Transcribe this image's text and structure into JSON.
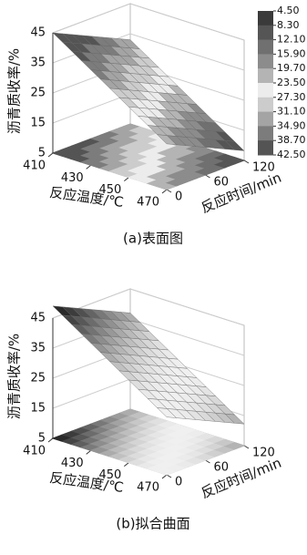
{
  "chart_data": [
    {
      "type": "surface",
      "caption": "(a)表面图",
      "zlabel": "沥青质收率/%",
      "xlabel": "反应温度/℃",
      "ylabel": "反应时间/min",
      "xlim": [
        410,
        470
      ],
      "xticks": [
        410,
        430,
        450,
        470
      ],
      "ylim": [
        0,
        120
      ],
      "yticks": [
        0,
        60,
        120
      ],
      "zlim": [
        5,
        45
      ],
      "zticks": [
        5,
        15,
        25,
        35,
        45
      ],
      "colorbar": {
        "ticks": [
          {
            "value": 4.5,
            "label": "4.50"
          },
          {
            "value": 8.3,
            "label": "8.30"
          },
          {
            "value": 12.1,
            "label": "12.10"
          },
          {
            "value": 15.9,
            "label": "15.90"
          },
          {
            "value": 19.7,
            "label": "19.70"
          },
          {
            "value": 23.5,
            "label": "23.50"
          },
          {
            "value": 27.3,
            "label": "27.30"
          },
          {
            "value": 31.1,
            "label": "31.10"
          },
          {
            "value": 34.9,
            "label": "34.90"
          },
          {
            "value": 38.7,
            "label": "38.70"
          },
          {
            "value": 42.5,
            "label": "42.50"
          }
        ],
        "colors": [
          "#3a3a3a",
          "#555555",
          "#707070",
          "#8c8c8c",
          "#b4b4b4",
          "#ececec",
          "#cccccc",
          "#a4a4a4",
          "#7c7c7c",
          "#545454"
        ]
      }
    },
    {
      "type": "surface",
      "caption": "(b)拟合曲面",
      "zlabel": "沥青质收率/%",
      "xlabel": "反应温度/℃",
      "ylabel": "反应时间/min",
      "xlim": [
        410,
        470
      ],
      "xticks": [
        410,
        430,
        450,
        470
      ],
      "ylim": [
        0,
        120
      ],
      "yticks": [
        0,
        60,
        120
      ],
      "zlim": [
        5,
        45
      ],
      "zticks": [
        5,
        15,
        25,
        35,
        45
      ]
    }
  ]
}
